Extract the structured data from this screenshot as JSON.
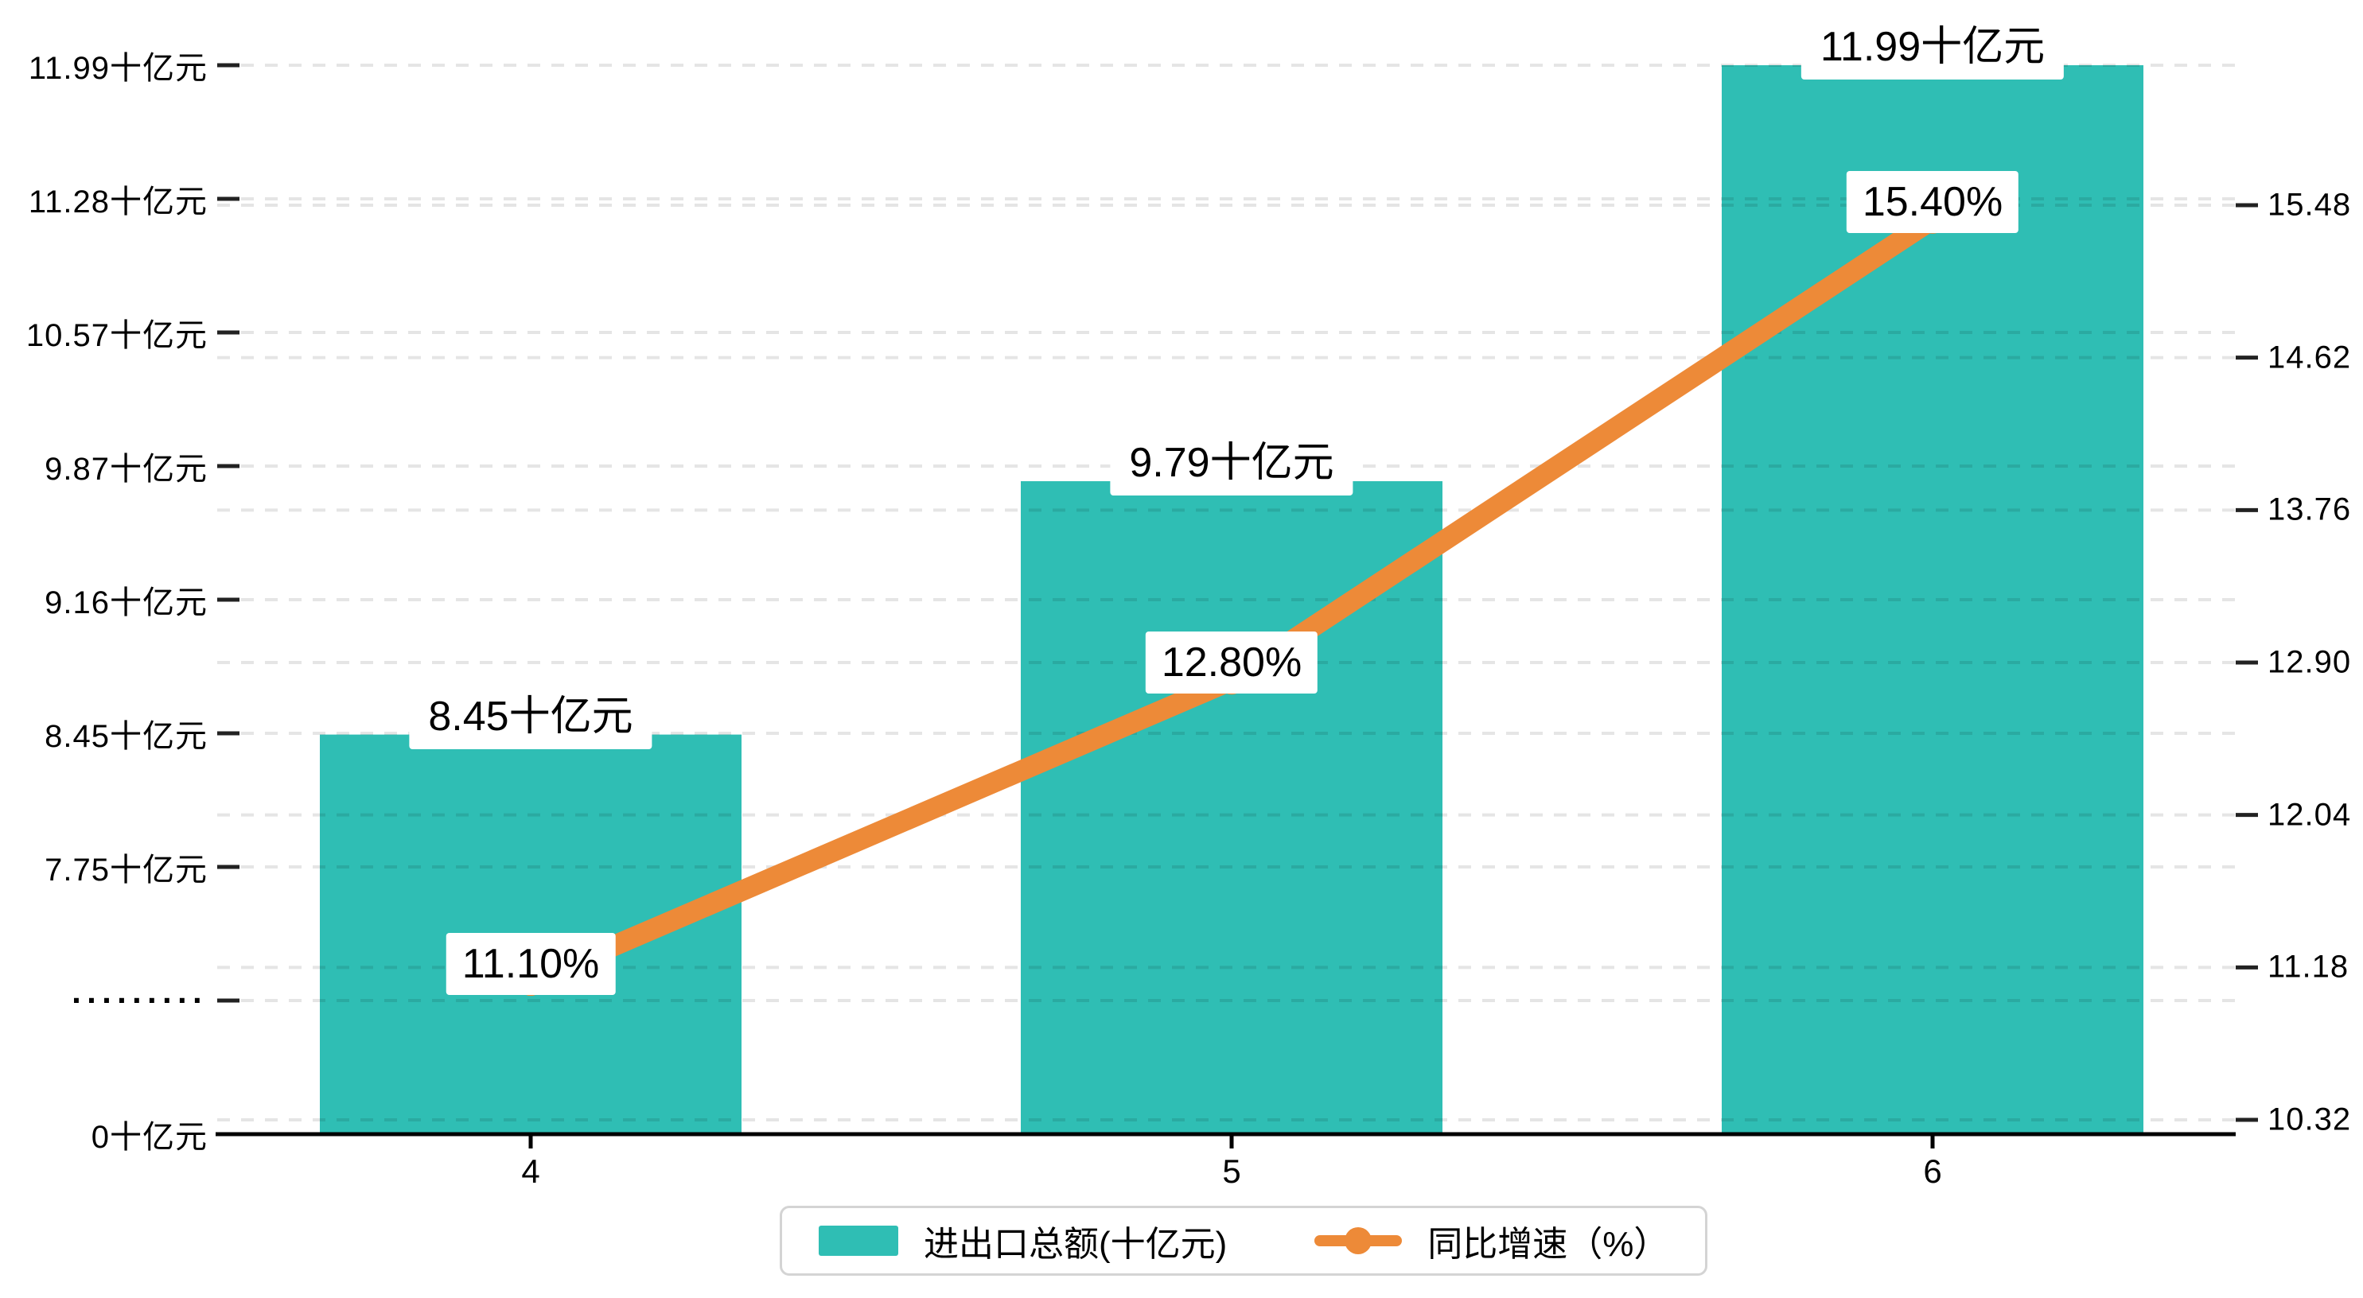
{
  "chart_data": {
    "type": "bar+line",
    "title": "",
    "categories": [
      "4",
      "5",
      "6"
    ],
    "series": [
      {
        "name": "进出口总额(十亿元)",
        "type": "bar",
        "axis": "left",
        "color": "#2fbeb4",
        "values": [
          8.45,
          9.79,
          11.99
        ],
        "data_labels": [
          "8.45十亿元",
          "9.79十亿元",
          "11.99十亿元"
        ]
      },
      {
        "name": "同比增速（%）",
        "type": "line",
        "axis": "right",
        "color": "#ed8a38",
        "values": [
          11.1,
          12.8,
          15.4
        ],
        "data_labels": [
          "11.10%",
          "12.80%",
          "15.40%"
        ]
      }
    ],
    "left_axis": {
      "tick_labels": [
        "0十亿元",
        "·········",
        "7.75十亿元",
        "8.45十亿元",
        "9.16十亿元",
        "9.87十亿元",
        "10.57十亿元",
        "11.28十亿元",
        "11.99十亿元"
      ],
      "broken_axis": true,
      "linear_start_value": 7.75,
      "top_value": 11.99
    },
    "right_axis": {
      "tick_labels": [
        "10.32",
        "11.18",
        "12.04",
        "12.90",
        "13.76",
        "14.62",
        "15.48"
      ],
      "min": 10.32,
      "max": 15.48
    },
    "legend": {
      "position": "bottom",
      "items": [
        {
          "label": "进出口总额(十亿元)",
          "marker": "bar",
          "color": "#2fbeb4"
        },
        {
          "label": "同比增速（%）",
          "marker": "line",
          "color": "#ed8a38"
        }
      ]
    },
    "grid": {
      "show": true,
      "style": "dashed",
      "color": "rgba(0,0,0,0.10)"
    },
    "colors": {
      "bar": "#2fbeb4",
      "line": "#ed8a38",
      "axis": "#000000",
      "label_box": "#ffffff",
      "legend_border": "#d4d4d4"
    }
  }
}
